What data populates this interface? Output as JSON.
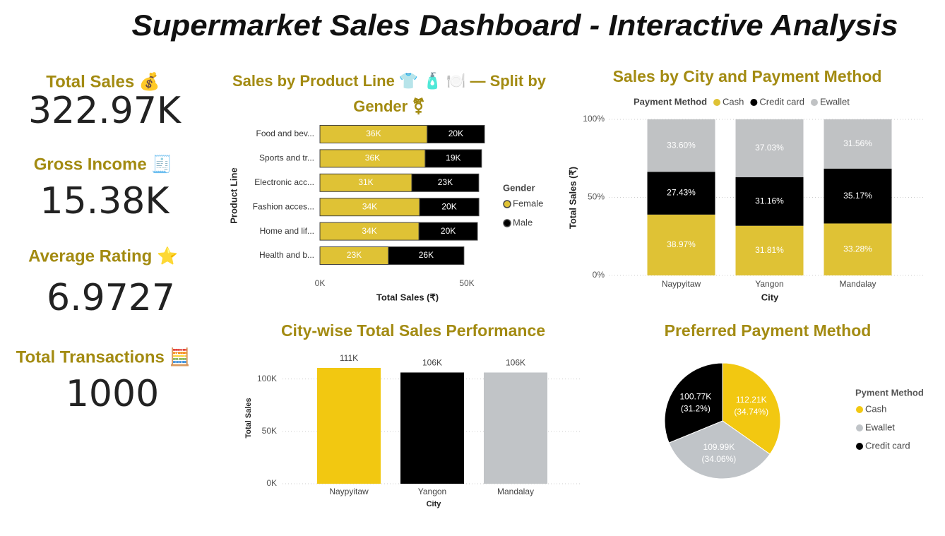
{
  "title": "Supermarket Sales Dashboard - Interactive Analysis",
  "kpis": [
    {
      "label": "Total Sales 💰",
      "value": "322.97K"
    },
    {
      "label": "Gross Income 🧾",
      "value": "15.38K"
    },
    {
      "label": "Average Rating ⭐",
      "value": "6.9727"
    },
    {
      "label": "Total Transactions 🧮",
      "value": "1000"
    }
  ],
  "chart_data": [
    {
      "type": "bar",
      "orientation": "horizontal",
      "stacked": true,
      "title": "Sales by Product Line 👕 🧴 🍽️ — Split by Gender ⚧",
      "x_label": "Total Sales (₹)",
      "y_label": "Product Line",
      "categories": [
        "Food and bev...",
        "Sports and tr...",
        "Electronic acc...",
        "Fashion acces...",
        "Home and lif...",
        "Health and b..."
      ],
      "series": [
        {
          "name": "Female",
          "color": "#dfc235",
          "values": [
            36500,
            35800,
            31250,
            33900,
            33700,
            23300
          ],
          "value_labels": [
            "36K",
            "36K",
            "31K",
            "34K",
            "34K",
            "23K"
          ]
        },
        {
          "name": "Male",
          "color": "#000000",
          "values": [
            19500,
            19200,
            22800,
            20200,
            19900,
            25700
          ],
          "value_labels": [
            "20K",
            "19K",
            "23K",
            "20K",
            "20K",
            "26K"
          ]
        }
      ],
      "xlim": [
        0,
        60000
      ],
      "xticks": [
        {
          "value": 0,
          "label": "0K"
        },
        {
          "value": 50000,
          "label": "50K"
        }
      ],
      "legend_title": "Gender",
      "legend_position": "right"
    },
    {
      "type": "bar",
      "orientation": "vertical",
      "stacked": true,
      "title": "Sales by City and Payment Method",
      "x_label": "City",
      "y_label": "Total Sales (₹)",
      "categories": [
        "Naypyitaw",
        "Yangon",
        "Mandalay"
      ],
      "series": [
        {
          "name": "Cash",
          "color": "#dfc235",
          "values": [
            38.97,
            31.81,
            33.28
          ],
          "value_labels": [
            "38.97%",
            "31.81%",
            "33.28%"
          ]
        },
        {
          "name": "Credit card",
          "color": "#000000",
          "values": [
            27.43,
            31.16,
            35.17
          ],
          "value_labels": [
            "27.43%",
            "31.16%",
            "35.17%"
          ]
        },
        {
          "name": "Ewallet",
          "color": "#c0c2c4",
          "values": [
            33.6,
            37.03,
            31.56
          ],
          "value_labels": [
            "33.60%",
            "37.03%",
            "31.56%"
          ]
        }
      ],
      "ylim": [
        0,
        100
      ],
      "yticks": [
        {
          "value": 0,
          "label": "0%"
        },
        {
          "value": 50,
          "label": "50%"
        },
        {
          "value": 100,
          "label": "100%"
        }
      ],
      "grid": true,
      "legend_title": "Payment Method",
      "legend_position": "top"
    },
    {
      "type": "bar",
      "orientation": "vertical",
      "stacked": false,
      "title": "City-wise Total Sales Performance",
      "x_label": "City",
      "y_label": "Total Sales",
      "categories": [
        "Naypyitaw",
        "Yangon",
        "Mandalay"
      ],
      "values": [
        110568.7,
        106197.7,
        106200.4
      ],
      "value_labels": [
        "111K",
        "106K",
        "106K"
      ],
      "colors": [
        "#f2c811",
        "#000000",
        "#c1c4c7"
      ],
      "ylim": [
        0,
        120000
      ],
      "yticks": [
        {
          "value": 0,
          "label": "0K"
        },
        {
          "value": 50000,
          "label": "50K"
        },
        {
          "value": 100000,
          "label": "100K"
        }
      ],
      "grid": true
    },
    {
      "type": "pie",
      "title": "Preferred Payment Method",
      "legend_title": "Pyment Method",
      "categories": [
        "Cash",
        "Ewallet",
        "Credit card"
      ],
      "values": [
        112206.57,
        109993.11,
        100767.07
      ],
      "value_labels": [
        "112.21K",
        "109.99K",
        "100.77K"
      ],
      "percent_labels": [
        "(34.74%)",
        "(34.06%)",
        "(31.2%)"
      ],
      "colors": [
        "#f2c811",
        "#c0c4c8",
        "#000000"
      ],
      "legend_position": "right"
    }
  ]
}
